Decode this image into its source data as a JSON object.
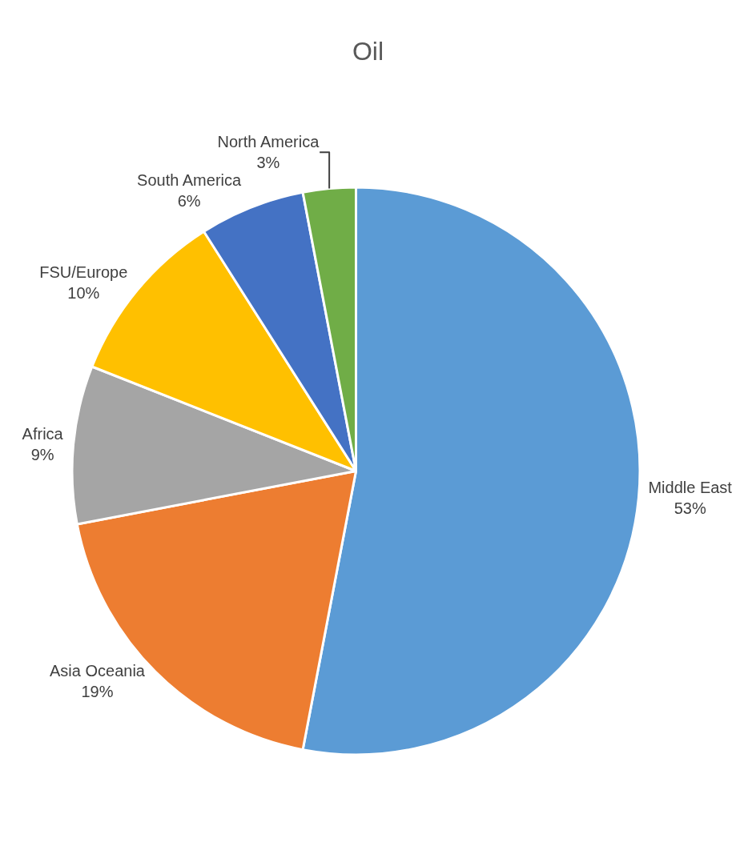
{
  "chart_data": {
    "type": "pie",
    "title": "Oil",
    "categories": [
      "Middle East",
      "Asia Oceania",
      "Africa",
      "FSU/Europe",
      "South America",
      "North America"
    ],
    "values": [
      53,
      19,
      9,
      10,
      6,
      3
    ],
    "value_labels": [
      "53%",
      "19%",
      "9%",
      "10%",
      "6%",
      "3%"
    ],
    "colors": [
      "#5b9bd5",
      "#ed7d31",
      "#a5a5a5",
      "#ffc000",
      "#4472c4",
      "#70ad47"
    ],
    "legend": false
  }
}
